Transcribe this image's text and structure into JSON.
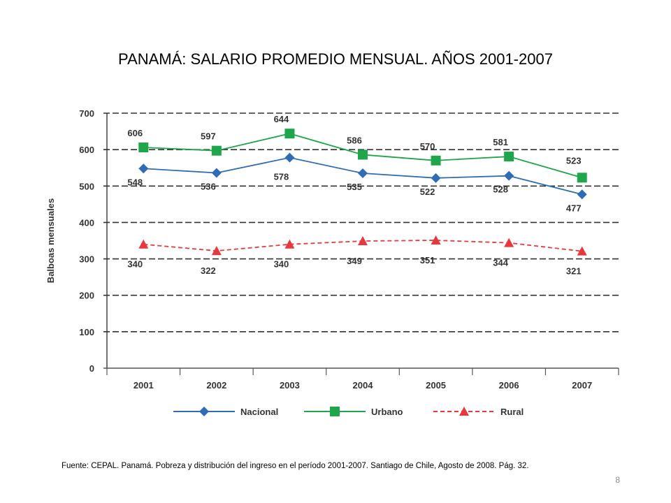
{
  "slide": {
    "title": "PANAMÁ: SALARIO PROMEDIO MENSUAL. AÑOS 2001-2007",
    "source": "Fuente:  CEPAL. Panamá.  Pobreza y distribución del ingreso en el período 2001-2007.  Santiago de Chile,  Agosto de 2008.  Pág. 32.",
    "page_number": "8"
  },
  "chart_data": {
    "type": "line",
    "title": "",
    "xlabel": "",
    "ylabel": "Balboas mensuales",
    "categories": [
      "2001",
      "2002",
      "2003",
      "2004",
      "2005",
      "2006",
      "2007"
    ],
    "ylim": [
      0,
      700
    ],
    "yticks": [
      0,
      100,
      200,
      300,
      400,
      500,
      600,
      700
    ],
    "grid": true,
    "legend_position": "bottom",
    "series": [
      {
        "name": "Nacional",
        "values": [
          548,
          536,
          578,
          535,
          522,
          528,
          477
        ],
        "color": "#2e6db4",
        "marker": "diamond",
        "dashed": false
      },
      {
        "name": "Urbano",
        "values": [
          606,
          597,
          644,
          586,
          570,
          581,
          523
        ],
        "color": "#1fa64a",
        "marker": "square",
        "dashed": false
      },
      {
        "name": "Rural",
        "values": [
          340,
          322,
          340,
          349,
          351,
          344,
          321
        ],
        "color": "#e8383d",
        "marker": "triangle",
        "dashed": true
      }
    ]
  }
}
